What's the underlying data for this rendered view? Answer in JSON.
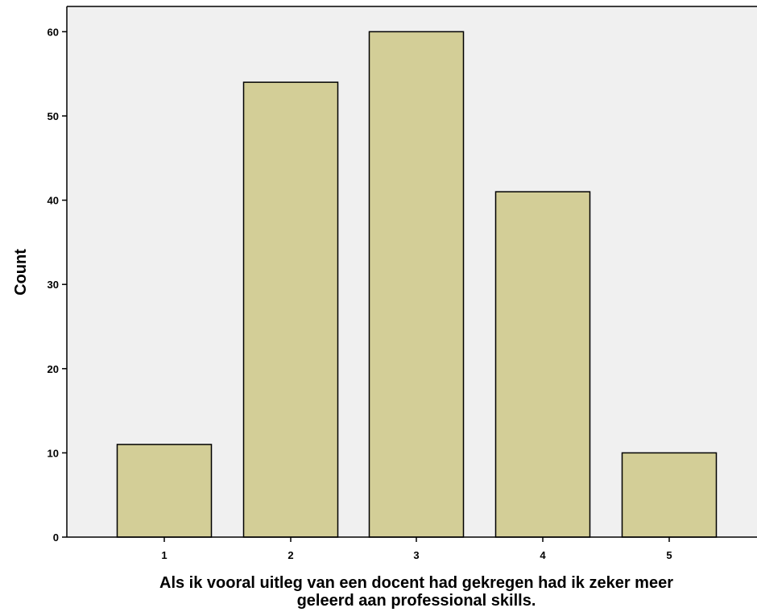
{
  "chart_data": {
    "type": "bar",
    "categories": [
      "1",
      "2",
      "3",
      "4",
      "5"
    ],
    "values": [
      11,
      54,
      60,
      41,
      10
    ],
    "xlabel_lines": [
      "Als ik vooral uitleg van een docent had gekregen had ik zeker meer",
      "geleerd aan professional skills."
    ],
    "ylabel": "Count",
    "ylim": [
      0,
      63
    ],
    "yticks": [
      "0",
      "10",
      "20",
      "30",
      "40",
      "50",
      "60"
    ],
    "grid": false,
    "colors": {
      "bar_fill": "#d3ce97",
      "bar_stroke": "#000000",
      "plot_background": "#f0f0f0"
    }
  }
}
